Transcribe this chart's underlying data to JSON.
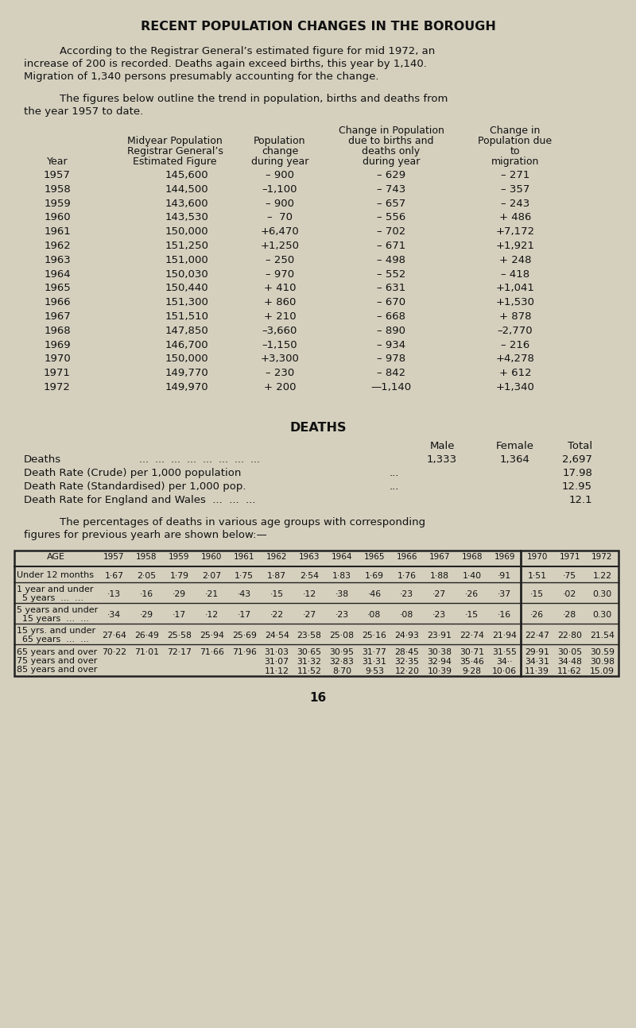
{
  "bg_color": "#d5d0be",
  "title": "RECENT POPULATION CHANGES IN THE BOROUGH",
  "intro_text_1": "According to the Registrar General’s estimated figure for mid 1972, an",
  "intro_text_2": "increase of 200 is recorded. Deaths again exceed births, this year by 1,140.",
  "intro_text_3": "Migration of 1,340 persons presumably accounting for the change.",
  "intro2_text_1": "The figures below outline the trend in population, births and deaths from",
  "intro2_text_2": "the year 1957 to date.",
  "pop_table_data": [
    [
      "1957",
      "145,600",
      "– 900",
      "– 629",
      "– 271"
    ],
    [
      "1958",
      "144,500",
      "–1,100",
      "– 743",
      "– 357"
    ],
    [
      "1959",
      "143,600",
      "– 900",
      "– 657",
      "– 243"
    ],
    [
      "1960",
      "143,530",
      "–  70",
      "– 556",
      "+ 486"
    ],
    [
      "1961",
      "150,000",
      "+6,470",
      "– 702",
      "+7,172"
    ],
    [
      "1962",
      "151,250",
      "+1,250",
      "– 671",
      "+1,921"
    ],
    [
      "1963",
      "151,000",
      "– 250",
      "– 498",
      "+ 248"
    ],
    [
      "1964",
      "150,030",
      "– 970",
      "– 552",
      "– 418"
    ],
    [
      "1965",
      "150,440",
      "+ 410",
      "– 631",
      "+1,041"
    ],
    [
      "1966",
      "151,300",
      "+ 860",
      "– 670",
      "+1,530"
    ],
    [
      "1967",
      "151,510",
      "+ 210",
      "– 668",
      "+ 878"
    ],
    [
      "1968",
      "147,850",
      "–3,660",
      "– 890",
      "–2,770"
    ],
    [
      "1969",
      "146,700",
      "–1,150",
      "– 934",
      "– 216"
    ],
    [
      "1970",
      "150,000",
      "+3,300",
      "– 978",
      "+4,278"
    ],
    [
      "1971",
      "149,770",
      "– 230",
      "– 842",
      "+ 612"
    ],
    [
      "1972",
      "149,970",
      "+ 200",
      "—1,140",
      "+1,340"
    ]
  ],
  "deaths_title": "DEATHS",
  "percentages_text_1": "The percentages of deaths in various age groups with corresponding",
  "percentages_text_2": "figures for previous yearh are shown below:—",
  "age_years": [
    "1957",
    "1958",
    "1959",
    "1960",
    "1961",
    "1962",
    "1963",
    "1964",
    "1965",
    "1966",
    "1967",
    "1968",
    "1969",
    "1970",
    "1971",
    "1972"
  ],
  "page_number": "16"
}
